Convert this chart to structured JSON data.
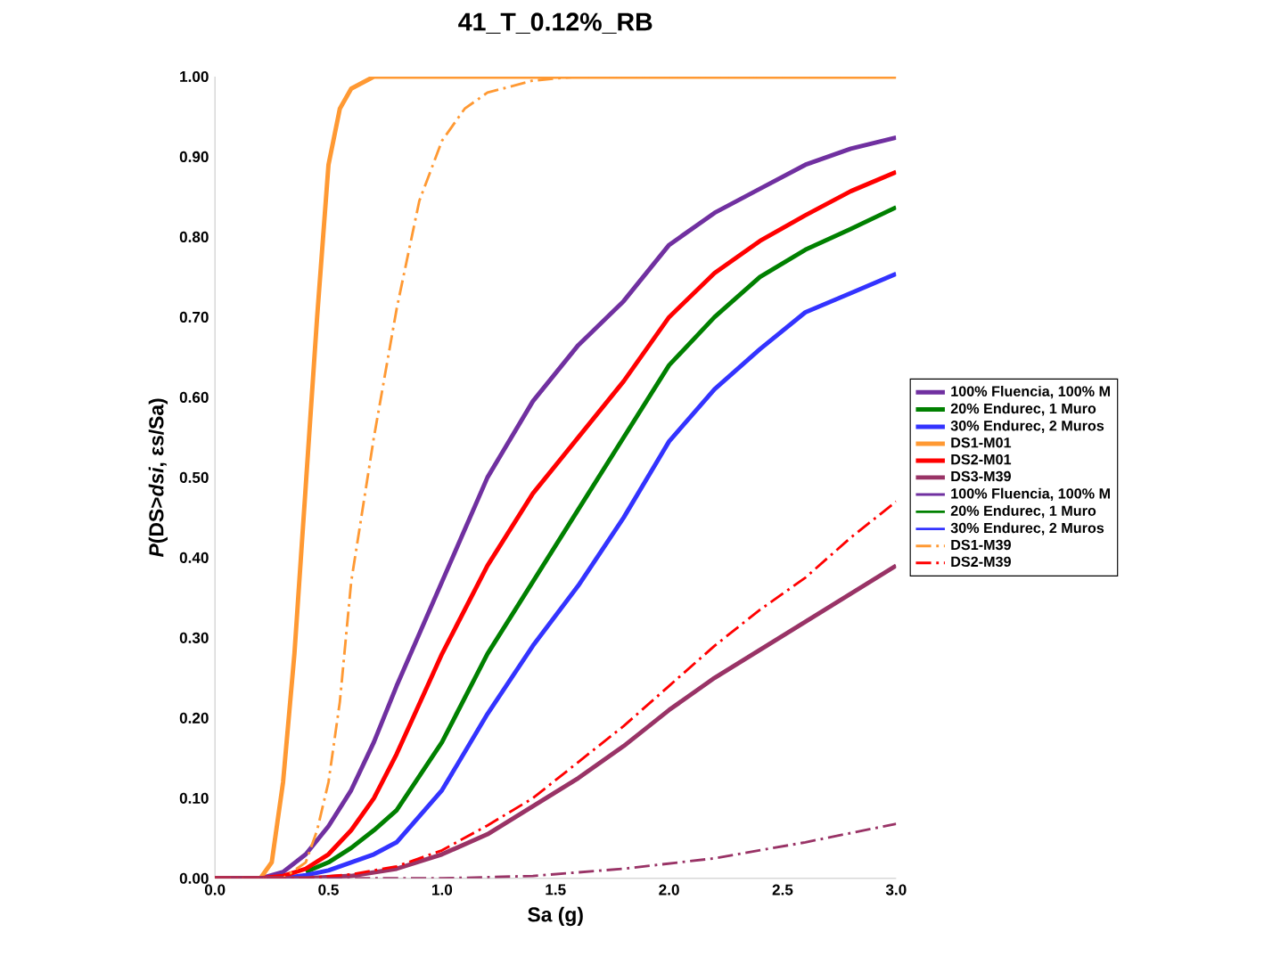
{
  "chart_data": {
    "type": "line",
    "title": "41_T_0.12%_RB",
    "xlabel": "Sa (g)",
    "ylabel": "*P*(DS>*dsi*, εs/Sa)",
    "xlim": [
      0,
      3.0
    ],
    "ylim": [
      0,
      1.0
    ],
    "xticks": [
      {
        "value": 0,
        "label": "0.0"
      },
      {
        "value": 0.5,
        "label": "0.5"
      },
      {
        "value": 1,
        "label": "1.0"
      },
      {
        "value": 1.5,
        "label": "1.5"
      },
      {
        "value": 2,
        "label": "2.0"
      },
      {
        "value": 2.5,
        "label": "2.5"
      },
      {
        "value": 3,
        "label": "3.0"
      }
    ],
    "yticks": [
      {
        "value": 0,
        "label": "0.00"
      },
      {
        "value": 0.1,
        "label": "0.10"
      },
      {
        "value": 0.2,
        "label": "0.20"
      },
      {
        "value": 0.3,
        "label": "0.30"
      },
      {
        "value": 0.4,
        "label": "0.40"
      },
      {
        "value": 0.5,
        "label": "0.50"
      },
      {
        "value": 0.6,
        "label": "0.60"
      },
      {
        "value": 0.7,
        "label": "0.70"
      },
      {
        "value": 0.8,
        "label": "0.80"
      },
      {
        "value": 0.9,
        "label": "0.90"
      },
      {
        "value": 1,
        "label": "1.00"
      }
    ],
    "legend": "right",
    "marker": "none",
    "series": [
      {
        "name": "100% Fluencia, 100% M",
        "color": "#7030a0",
        "line_style": "solid",
        "x": [
          0,
          0.2,
          0.3,
          0.4,
          0.5,
          0.6,
          0.7,
          0.8,
          1.0,
          1.2,
          1.4,
          1.6,
          1.8,
          2.0,
          2.2,
          2.4,
          2.6,
          2.8,
          3.0
        ],
        "values": [
          0,
          0,
          0.008,
          0.03,
          0.065,
          0.11,
          0.17,
          0.24,
          0.37,
          0.5,
          0.595,
          0.665,
          0.72,
          0.79,
          0.83,
          0.86,
          0.89,
          0.91,
          0.924
        ]
      },
      {
        "name": "20% Endurec, 1 Muro",
        "color": "#008000",
        "line_style": "solid",
        "x": [
          0.4,
          0.5,
          0.6,
          0.7,
          0.8,
          1.0,
          1.2,
          1.4,
          1.6,
          1.8,
          2.0,
          2.2,
          2.4,
          2.6,
          2.8,
          3.0
        ],
        "values": [
          0.008,
          0.02,
          0.038,
          0.06,
          0.085,
          0.17,
          0.28,
          0.37,
          0.46,
          0.55,
          0.64,
          0.7,
          0.75,
          0.784,
          0.81,
          0.837
        ]
      },
      {
        "name": "30% Endurec, 2 Muros",
        "color": "#3333ff",
        "line_style": "solid",
        "x": [
          0,
          0.3,
          0.4,
          0.5,
          0.6,
          0.7,
          0.8,
          1.0,
          1.2,
          1.4,
          1.6,
          1.8,
          2.0,
          2.2,
          2.4,
          2.6,
          2.8,
          3.0
        ],
        "values": [
          0,
          0,
          0.004,
          0.01,
          0.02,
          0.03,
          0.045,
          0.11,
          0.205,
          0.29,
          0.365,
          0.45,
          0.545,
          0.61,
          0.66,
          0.706,
          0.73,
          0.754
        ]
      },
      {
        "name": "DS1-M01",
        "color": "#ff9933",
        "line_style": "solid",
        "x": [
          0,
          0.2,
          0.25,
          0.3,
          0.35,
          0.4,
          0.45,
          0.5,
          0.55,
          0.6,
          0.7,
          3.0
        ],
        "values": [
          0,
          0,
          0.02,
          0.12,
          0.28,
          0.49,
          0.7,
          0.89,
          0.96,
          0.985,
          1.0,
          1.0
        ]
      },
      {
        "name": "DS2-M01",
        "color": "#ff0000",
        "line_style": "solid",
        "x": [
          0,
          0.2,
          0.3,
          0.4,
          0.5,
          0.6,
          0.7,
          0.8,
          1.0,
          1.2,
          1.4,
          1.6,
          1.8,
          2.0,
          2.2,
          2.4,
          2.6,
          2.8,
          3.0
        ],
        "values": [
          0,
          0,
          0.003,
          0.012,
          0.03,
          0.06,
          0.1,
          0.155,
          0.28,
          0.39,
          0.48,
          0.55,
          0.62,
          0.7,
          0.755,
          0.795,
          0.827,
          0.857,
          0.881
        ]
      },
      {
        "name": "DS3-M39",
        "color": "#993366",
        "line_style": "solid",
        "x": [
          0,
          0.4,
          0.6,
          0.8,
          1.0,
          1.2,
          1.4,
          1.6,
          1.8,
          2.0,
          2.2,
          2.4,
          2.6,
          2.8,
          3.0
        ],
        "values": [
          0,
          0,
          0.003,
          0.012,
          0.03,
          0.055,
          0.09,
          0.125,
          0.165,
          0.21,
          0.25,
          0.285,
          0.32,
          0.355,
          0.39
        ]
      },
      {
        "name": "100% Fluencia, 100% M",
        "color": "#7030a0",
        "line_style": "solid"
      },
      {
        "name": "20% Endurec, 1 Muro",
        "color": "#008000",
        "line_style": "solid"
      },
      {
        "name": "30% Endurec, 2 Muros",
        "color": "#3333ff",
        "line_style": "solid"
      },
      {
        "name": "DS1-M39",
        "color": "#ff9933",
        "line_style": "dashdot",
        "x": [
          0,
          0.3,
          0.4,
          0.45,
          0.5,
          0.55,
          0.6,
          0.7,
          0.8,
          0.9,
          1.0,
          1.1,
          1.2,
          1.4,
          1.6,
          3.0
        ],
        "values": [
          0,
          0,
          0.02,
          0.06,
          0.12,
          0.22,
          0.37,
          0.55,
          0.71,
          0.845,
          0.92,
          0.96,
          0.98,
          0.995,
          1.0,
          1.0
        ]
      },
      {
        "name": "DS2-M39",
        "color": "#ff0000",
        "line_style": "dashdot",
        "x": [
          0,
          0.4,
          0.6,
          0.8,
          1.0,
          1.2,
          1.4,
          1.6,
          1.8,
          2.0,
          2.2,
          2.4,
          2.6,
          2.8,
          3.0
        ],
        "values": [
          0,
          0,
          0.005,
          0.015,
          0.035,
          0.066,
          0.1,
          0.145,
          0.19,
          0.24,
          0.29,
          0.335,
          0.375,
          0.425,
          0.47
        ]
      },
      {
        "color": "#993366",
        "line_style": "dashdot",
        "x": [
          0,
          1.0,
          1.4,
          1.8,
          2.2,
          2.6,
          3.0
        ],
        "values": [
          0,
          0,
          0.003,
          0.012,
          0.025,
          0.045,
          0.068
        ]
      }
    ]
  }
}
